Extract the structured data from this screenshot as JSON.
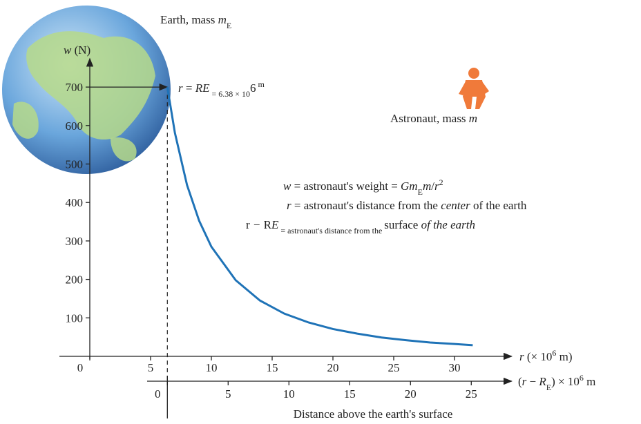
{
  "chart_data": {
    "type": "line",
    "x": [
      6.38,
      7,
      8,
      9,
      10,
      12,
      14,
      16,
      18,
      20,
      22,
      24,
      26,
      28,
      30,
      31.5
    ],
    "series": [
      {
        "color": "#1f73b7",
        "values": [
          700,
          581,
          445,
          352,
          285,
          198,
          145,
          111,
          88,
          71,
          59,
          49,
          42,
          36,
          32,
          29
        ]
      }
    ],
    "xlim": [
      -2.5,
      34.7
    ],
    "ylim": [
      0,
      774
    ],
    "xticks": [
      0,
      5,
      10,
      15,
      20,
      25,
      30
    ],
    "yticks": [
      100,
      200,
      300,
      400,
      500,
      600,
      700
    ],
    "x2ticks": [
      0,
      5,
      10,
      15,
      20,
      25
    ],
    "r_earth": 6.38,
    "y_label": [
      "w",
      " (N)"
    ],
    "x_label": [
      "r",
      " (× 10",
      "6",
      " m)"
    ],
    "x2_label": [
      "(",
      "r",
      " − ",
      "R",
      "E",
      ") × 10",
      "6",
      " m"
    ],
    "x2_title": "Distance above the earth's surface",
    "earth_label": [
      "Earth, mass ",
      "m",
      "E"
    ],
    "radius_label": [
      "r",
      " = ",
      "R",
      "E",
      " = 6.38 × 10",
      "6",
      " m"
    ],
    "astronaut_label": [
      "Astronaut, mass ",
      "m"
    ],
    "legend": [
      [
        "w",
        " = astronaut's weight = ",
        "Gm",
        "E",
        "m",
        "/",
        "r",
        "2"
      ],
      [
        "r",
        " = astronaut's distance from the ",
        "center",
        " of the earth"
      ],
      [
        "r",
        " − ",
        "R",
        "E",
        " = astronaut's distance from the ",
        "surface",
        " of the earth"
      ]
    ]
  }
}
